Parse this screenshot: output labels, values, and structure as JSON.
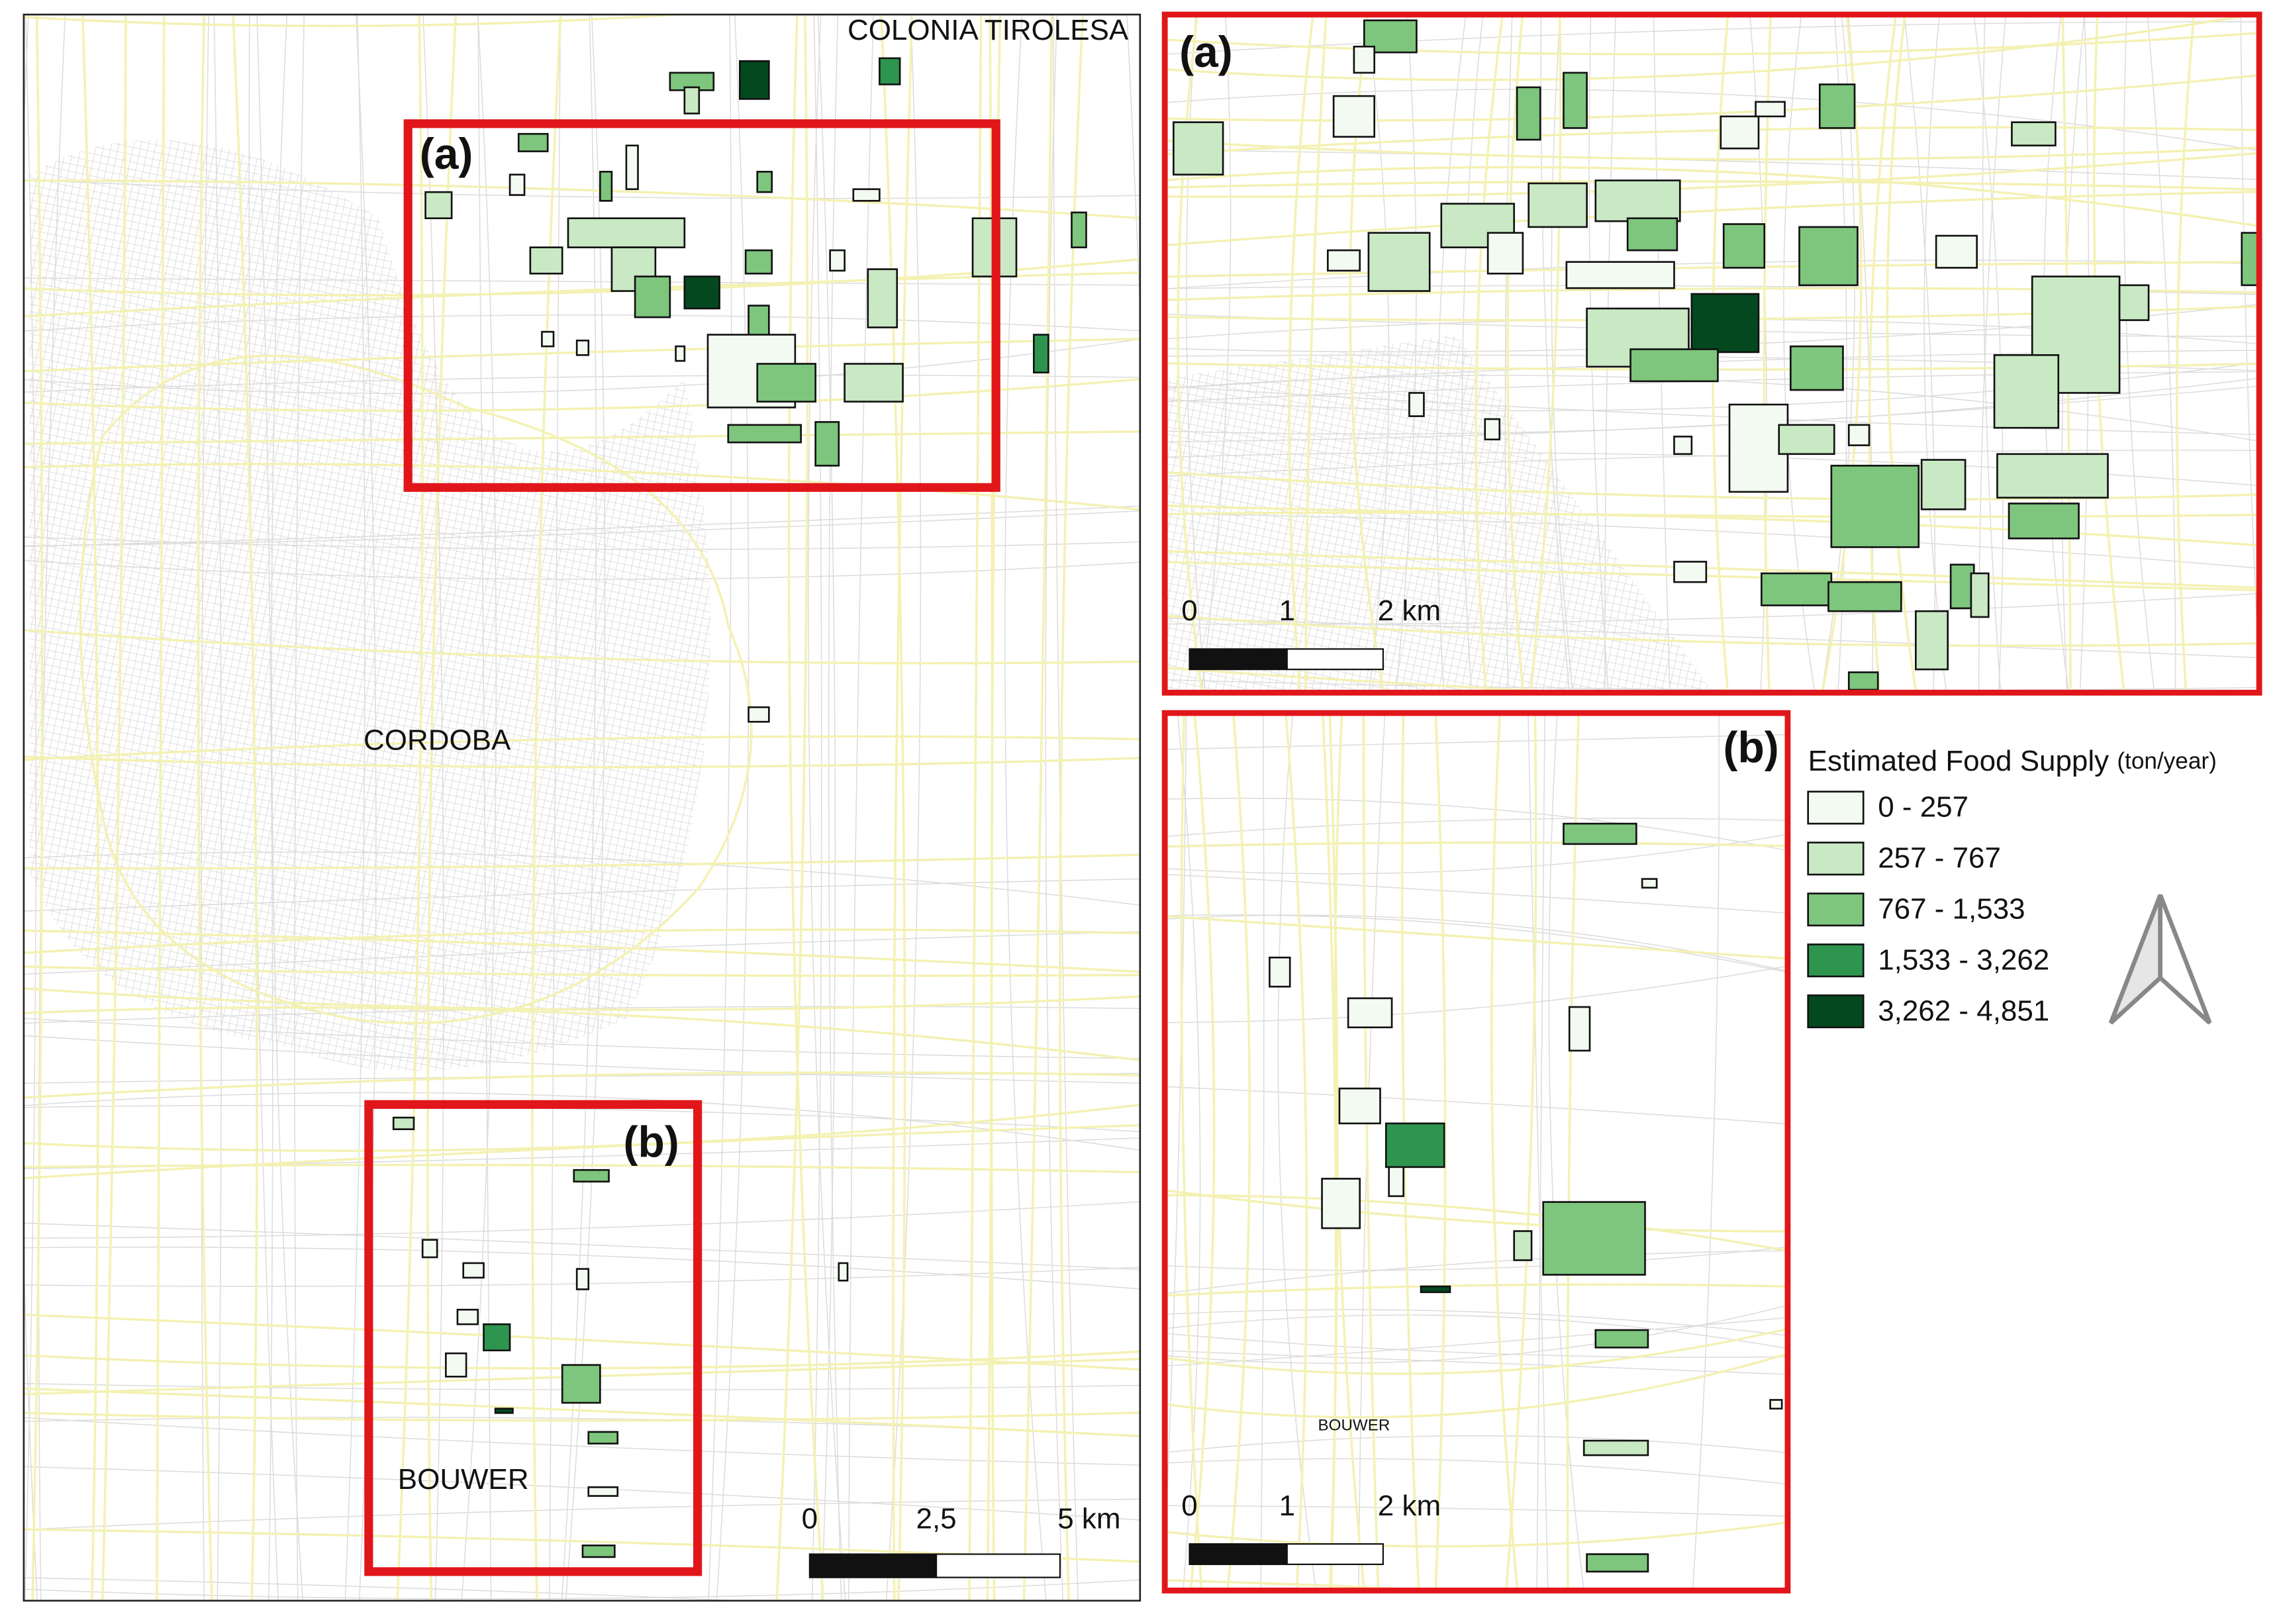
{
  "main_map": {
    "place_labels": [
      "COLONIA TIROLESA",
      "CORDOBA",
      "BOUWER"
    ],
    "inset_labels": [
      "(a)",
      "(b)"
    ],
    "scale_bar": [
      "0",
      "2,5",
      "5 km"
    ]
  },
  "inset_a": {
    "label": "(a)",
    "scale_bar": [
      "0",
      "1",
      "2 km"
    ]
  },
  "inset_b": {
    "label": "(b)",
    "place_label": "BOUWER",
    "scale_bar": [
      "0",
      "1",
      "2 km"
    ]
  },
  "legend": {
    "title": "Estimated Food Supply",
    "unit": "(ton/year)",
    "classes": [
      {
        "label": "0 - 257",
        "color": "#f3faf1"
      },
      {
        "label": "257 - 767",
        "color": "#c9e8c4"
      },
      {
        "label": "767 - 1,533",
        "color": "#7ec57e"
      },
      {
        "label": "1,533 - 3,262",
        "color": "#2e954f"
      },
      {
        "label": "3,262 - 4,851",
        "color": "#04481f"
      }
    ]
  }
}
